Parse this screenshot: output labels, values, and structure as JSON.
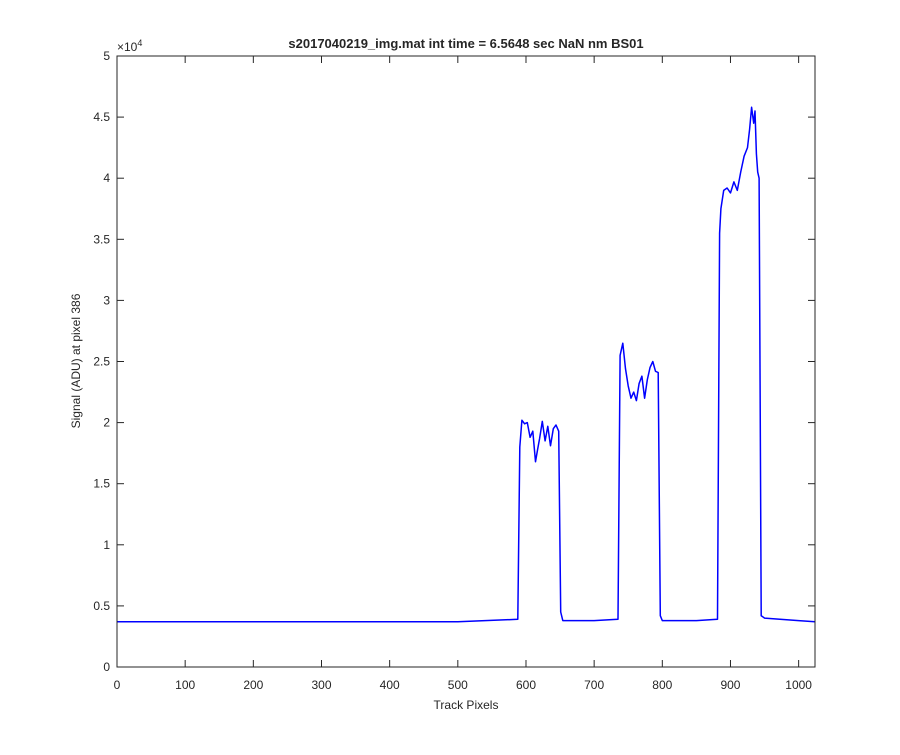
{
  "chart_data": {
    "type": "line",
    "title": "s2017040219_img.mat int time = 6.5648 sec  NaN nm BS01",
    "xlabel": "Track Pixels",
    "ylabel": "Signal (ADU) at pixel 386",
    "y_exponent_label": "×10",
    "y_exponent": "4",
    "xlim": [
      0,
      1024
    ],
    "ylim": [
      0,
      50000
    ],
    "x_ticks": [
      0,
      100,
      200,
      300,
      400,
      500,
      600,
      700,
      800,
      900,
      1000
    ],
    "x_tick_labels": [
      "0",
      "100",
      "200",
      "300",
      "400",
      "500",
      "600",
      "700",
      "800",
      "900",
      "1000"
    ],
    "y_ticks": [
      0,
      5000,
      10000,
      15000,
      20000,
      25000,
      30000,
      35000,
      40000,
      45000,
      50000
    ],
    "y_tick_labels": [
      "0",
      "0.5",
      "1",
      "1.5",
      "2",
      "2.5",
      "3",
      "3.5",
      "4",
      "4.5",
      "5"
    ],
    "grid": false,
    "line_color": "#0000ff",
    "series": [
      {
        "x": [
          0,
          100,
          200,
          300,
          400,
          500,
          588,
          591,
          594,
          598,
          602,
          606,
          610,
          614,
          617,
          620,
          624,
          628,
          632,
          636,
          640,
          644,
          648,
          651,
          654,
          700,
          735,
          738,
          742,
          746,
          750,
          754,
          758,
          762,
          766,
          770,
          774,
          778,
          782,
          786,
          790,
          794,
          797,
          800,
          850,
          881,
          884,
          886,
          890,
          895,
          900,
          905,
          910,
          915,
          920,
          925,
          928,
          931,
          934,
          936,
          938,
          940,
          942,
          945,
          950,
          1000,
          1024
        ],
        "y": [
          3700,
          3700,
          3700,
          3700,
          3700,
          3700,
          3900,
          18000,
          20200,
          19900,
          20000,
          18800,
          19300,
          16800,
          17800,
          18700,
          20100,
          18500,
          19700,
          18100,
          19500,
          19800,
          19300,
          4500,
          3800,
          3800,
          3900,
          25500,
          26500,
          24400,
          23000,
          22000,
          22500,
          21800,
          23200,
          23800,
          22000,
          23500,
          24500,
          25000,
          24200,
          24100,
          4200,
          3800,
          3800,
          3900,
          35500,
          37500,
          39000,
          39200,
          38800,
          39700,
          39000,
          40500,
          41800,
          42500,
          44000,
          45800,
          44500,
          45500,
          42000,
          40500,
          40000,
          4200,
          4000,
          3800,
          3700
        ]
      }
    ]
  }
}
